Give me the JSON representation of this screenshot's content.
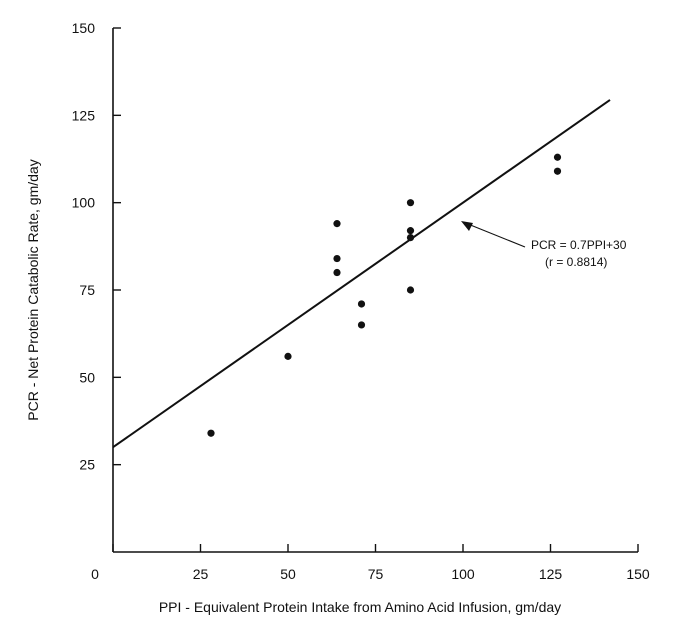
{
  "chart_data": {
    "type": "scatter",
    "title": "",
    "xlabel": "PPI - Equivalent Protein Intake from Amino Acid Infusion, gm/day",
    "ylabel": "PCR - Net Protein Catabolic Rate, gm/day",
    "xlim": [
      0,
      150
    ],
    "ylim": [
      0,
      150
    ],
    "xticks": [
      0,
      25,
      50,
      75,
      100,
      125,
      150
    ],
    "yticks": [
      25,
      50,
      75,
      100,
      125,
      150
    ],
    "x_tick_labels": [
      "0",
      "25",
      "50",
      "75",
      "100",
      "125",
      "150"
    ],
    "y_tick_labels": [
      "25",
      "50",
      "75",
      "100",
      "125",
      "150"
    ],
    "grid": false,
    "points": [
      {
        "x": 28,
        "y": 34
      },
      {
        "x": 50,
        "y": 56
      },
      {
        "x": 64,
        "y": 94
      },
      {
        "x": 64,
        "y": 84
      },
      {
        "x": 64,
        "y": 80
      },
      {
        "x": 71,
        "y": 71
      },
      {
        "x": 71,
        "y": 65
      },
      {
        "x": 85,
        "y": 100
      },
      {
        "x": 85,
        "y": 92
      },
      {
        "x": 85,
        "y": 90
      },
      {
        "x": 85,
        "y": 75
      },
      {
        "x": 127,
        "y": 113
      },
      {
        "x": 127,
        "y": 109
      }
    ],
    "regression": {
      "slope": 0.7,
      "intercept": 30,
      "x_range": [
        0,
        142
      ]
    },
    "annotation": {
      "line1": "PCR = 0.7PPI+30",
      "line2": "(r = 0.8814)"
    },
    "colors": {
      "points": "#111111",
      "line": "#111111",
      "axes": "#111111"
    }
  }
}
